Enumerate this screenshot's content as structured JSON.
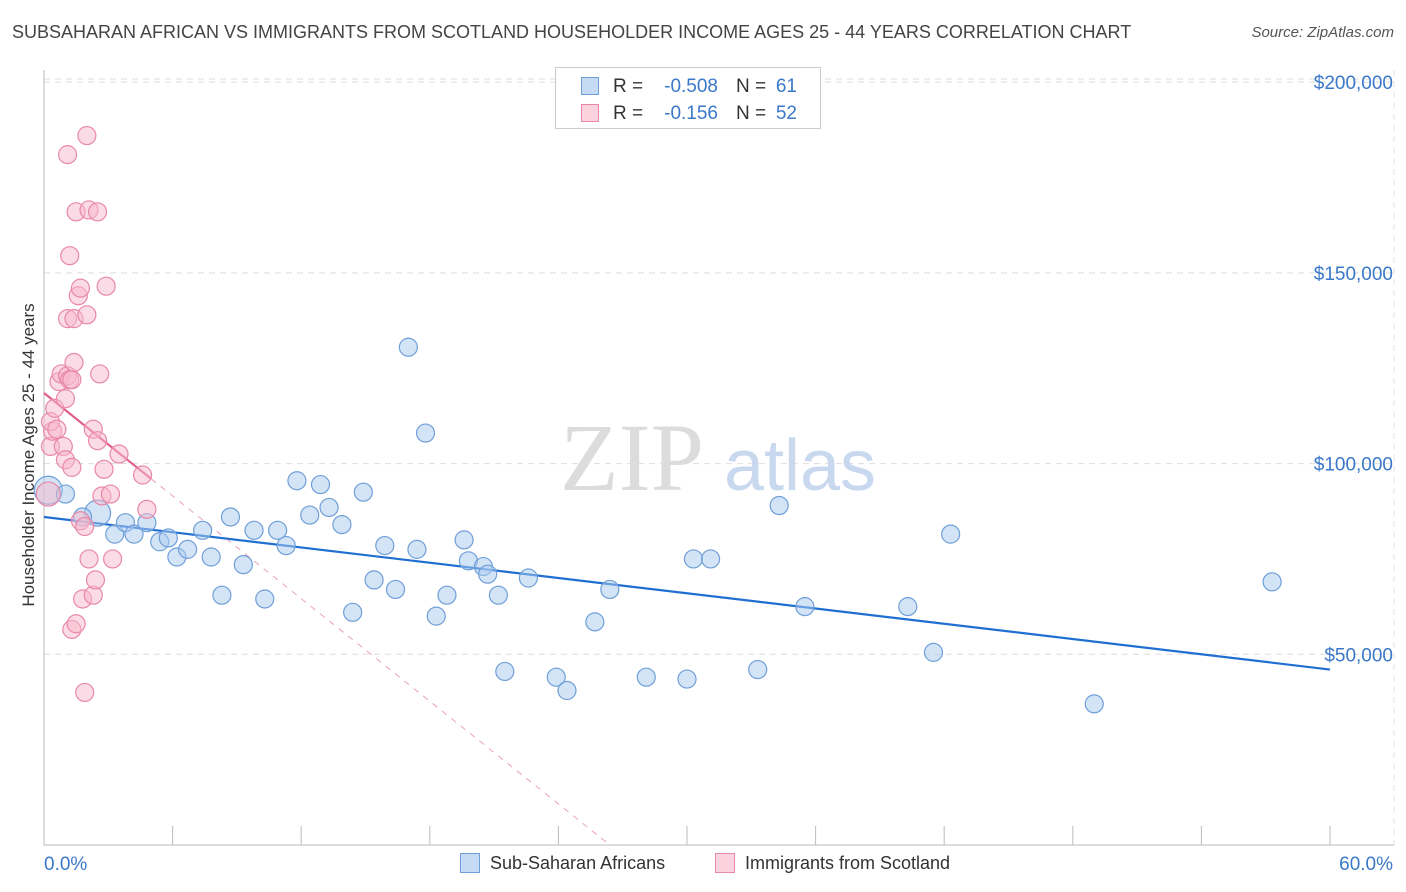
{
  "title": "SUBSAHARAN AFRICAN VS IMMIGRANTS FROM SCOTLAND HOUSEHOLDER INCOME AGES 25 - 44 YEARS CORRELATION CHART",
  "source": "Source: ZipAtlas.com",
  "watermark": {
    "zip": "ZIP",
    "atlas": "atlas"
  },
  "legend": {
    "rows": [
      {
        "r_label": "R =",
        "r_value": "-0.508",
        "n_label": "N =",
        "n_value": "61"
      },
      {
        "r_label": "R =",
        "r_value": "-0.156",
        "n_label": "N =",
        "n_value": "52"
      }
    ]
  },
  "bottom_legend": {
    "blue": "Sub-Saharan Africans",
    "pink": "Immigrants from Scotland"
  },
  "colors": {
    "blue_fill": "#a9c9f0",
    "blue_stroke": "#6f9fd8",
    "blue_line": "#1f6fd1",
    "pink_fill": "#f7b8cb",
    "pink_stroke": "#e888a8",
    "pink_line": "#e0608a",
    "axis_label": "#3a78c9",
    "grid": "#dddddd"
  },
  "chart_data": {
    "type": "scatter",
    "title": "SUBSAHARAN AFRICAN VS IMMIGRANTS FROM SCOTLAND HOUSEHOLDER INCOME AGES 25 - 44 YEARS CORRELATION CHART",
    "xlabel": "",
    "ylabel": "Householder Income Ages 25 - 44 years",
    "xlim": [
      0,
      60
    ],
    "ylim": [
      0,
      210000
    ],
    "x_tick_labels": {
      "min": "0.0%",
      "max": "60.0%"
    },
    "y_ticks": [
      {
        "value": 50000,
        "label": "$50,000"
      },
      {
        "value": 100000,
        "label": "$100,000"
      },
      {
        "value": 150000,
        "label": "$150,000"
      },
      {
        "value": 200000,
        "label": "$200,000"
      }
    ],
    "series": [
      {
        "name": "Sub-Saharan Africans",
        "color": "blue",
        "points": [
          [
            0.2,
            93000,
            14
          ],
          [
            2.5,
            87000,
            13
          ],
          [
            1.0,
            92000,
            9
          ],
          [
            1.8,
            86000,
            9
          ],
          [
            3.3,
            81500,
            9
          ],
          [
            3.8,
            84500,
            9
          ],
          [
            4.2,
            81500,
            9
          ],
          [
            4.8,
            84500,
            9
          ],
          [
            5.4,
            79500,
            9
          ],
          [
            5.8,
            80500,
            9
          ],
          [
            6.2,
            75500,
            9
          ],
          [
            6.7,
            77500,
            9
          ],
          [
            7.4,
            82500,
            9
          ],
          [
            7.8,
            75500,
            9
          ],
          [
            8.3,
            65500,
            9
          ],
          [
            8.7,
            86000,
            9
          ],
          [
            9.3,
            73500,
            9
          ],
          [
            9.8,
            82500,
            9
          ],
          [
            10.3,
            64500,
            9
          ],
          [
            10.9,
            82500,
            9
          ],
          [
            11.3,
            78500,
            9
          ],
          [
            11.8,
            95500,
            9
          ],
          [
            12.4,
            86500,
            9
          ],
          [
            12.9,
            94500,
            9
          ],
          [
            13.3,
            88500,
            9
          ],
          [
            13.9,
            84000,
            9
          ],
          [
            14.4,
            61000,
            9
          ],
          [
            14.9,
            92500,
            9
          ],
          [
            15.4,
            69500,
            9
          ],
          [
            15.9,
            78500,
            9
          ],
          [
            16.4,
            67000,
            9
          ],
          [
            17.0,
            130500,
            9
          ],
          [
            17.4,
            77500,
            9
          ],
          [
            17.8,
            108000,
            9
          ],
          [
            18.3,
            60000,
            9
          ],
          [
            18.8,
            65500,
            9
          ],
          [
            19.6,
            80000,
            9
          ],
          [
            19.8,
            74500,
            9
          ],
          [
            20.5,
            73000,
            9
          ],
          [
            20.7,
            71000,
            9
          ],
          [
            21.2,
            65500,
            9
          ],
          [
            21.5,
            45500,
            9
          ],
          [
            22.6,
            70000,
            9
          ],
          [
            23.9,
            44000,
            9
          ],
          [
            24.4,
            40500,
            9
          ],
          [
            25.7,
            58500,
            9
          ],
          [
            26.4,
            67000,
            9
          ],
          [
            28.1,
            44000,
            9
          ],
          [
            30.0,
            43500,
            9
          ],
          [
            30.3,
            75000,
            9
          ],
          [
            31.1,
            75000,
            9
          ],
          [
            33.3,
            46000,
            9
          ],
          [
            34.3,
            89000,
            9
          ],
          [
            35.5,
            62500,
            9
          ],
          [
            40.3,
            62500,
            9
          ],
          [
            41.5,
            50500,
            9
          ],
          [
            42.3,
            81500,
            9
          ],
          [
            49.0,
            37000,
            9
          ],
          [
            57.3,
            69000,
            9
          ]
        ]
      },
      {
        "name": "Immigrants from Scotland",
        "color": "pink",
        "points": [
          [
            0.2,
            92000,
            12
          ],
          [
            0.3,
            104500,
            9
          ],
          [
            0.4,
            108500,
            9
          ],
          [
            0.3,
            111000,
            9
          ],
          [
            0.6,
            109000,
            9
          ],
          [
            0.5,
            114500,
            9
          ],
          [
            0.7,
            121500,
            9
          ],
          [
            0.8,
            123500,
            9
          ],
          [
            0.9,
            104500,
            9
          ],
          [
            1.0,
            101000,
            9
          ],
          [
            1.0,
            117000,
            9
          ],
          [
            1.1,
            123000,
            9
          ],
          [
            1.2,
            122000,
            9
          ],
          [
            1.1,
            138000,
            9
          ],
          [
            1.3,
            122000,
            9
          ],
          [
            1.1,
            181000,
            9
          ],
          [
            1.2,
            154500,
            9
          ],
          [
            1.3,
            99000,
            9
          ],
          [
            1.4,
            138000,
            9
          ],
          [
            1.4,
            126500,
            9
          ],
          [
            1.5,
            166000,
            9
          ],
          [
            1.6,
            144000,
            9
          ],
          [
            1.7,
            146000,
            9
          ],
          [
            1.3,
            56500,
            9
          ],
          [
            1.5,
            58000,
            9
          ],
          [
            1.8,
            64500,
            9
          ],
          [
            1.7,
            85000,
            9
          ],
          [
            1.9,
            83500,
            9
          ],
          [
            1.9,
            40000,
            9
          ],
          [
            2.0,
            139000,
            9
          ],
          [
            2.0,
            186000,
            9
          ],
          [
            2.1,
            166500,
            9
          ],
          [
            2.1,
            75000,
            9
          ],
          [
            2.3,
            109000,
            9
          ],
          [
            2.3,
            65500,
            9
          ],
          [
            2.4,
            69500,
            9
          ],
          [
            2.5,
            106000,
            9
          ],
          [
            2.5,
            166000,
            9
          ],
          [
            2.6,
            123500,
            9
          ],
          [
            2.7,
            91500,
            9
          ],
          [
            2.8,
            98500,
            9
          ],
          [
            2.9,
            146500,
            9
          ],
          [
            3.1,
            92000,
            9
          ],
          [
            3.2,
            75000,
            9
          ],
          [
            3.5,
            102500,
            9
          ],
          [
            4.6,
            97000,
            9
          ],
          [
            4.8,
            88000,
            9
          ]
        ]
      }
    ],
    "trendlines": [
      {
        "series": "Sub-Saharan Africans",
        "from": [
          0,
          86000
        ],
        "to": [
          60,
          46000
        ],
        "style": "solid"
      },
      {
        "series": "Immigrants from Scotland",
        "from": [
          0,
          118500
        ],
        "to": [
          5,
          96000
        ],
        "style": "solid"
      },
      {
        "series": "Immigrants from Scotland",
        "from": [
          5,
          96000
        ],
        "to": [
          26.4,
          0
        ],
        "style": "dashed"
      }
    ]
  }
}
